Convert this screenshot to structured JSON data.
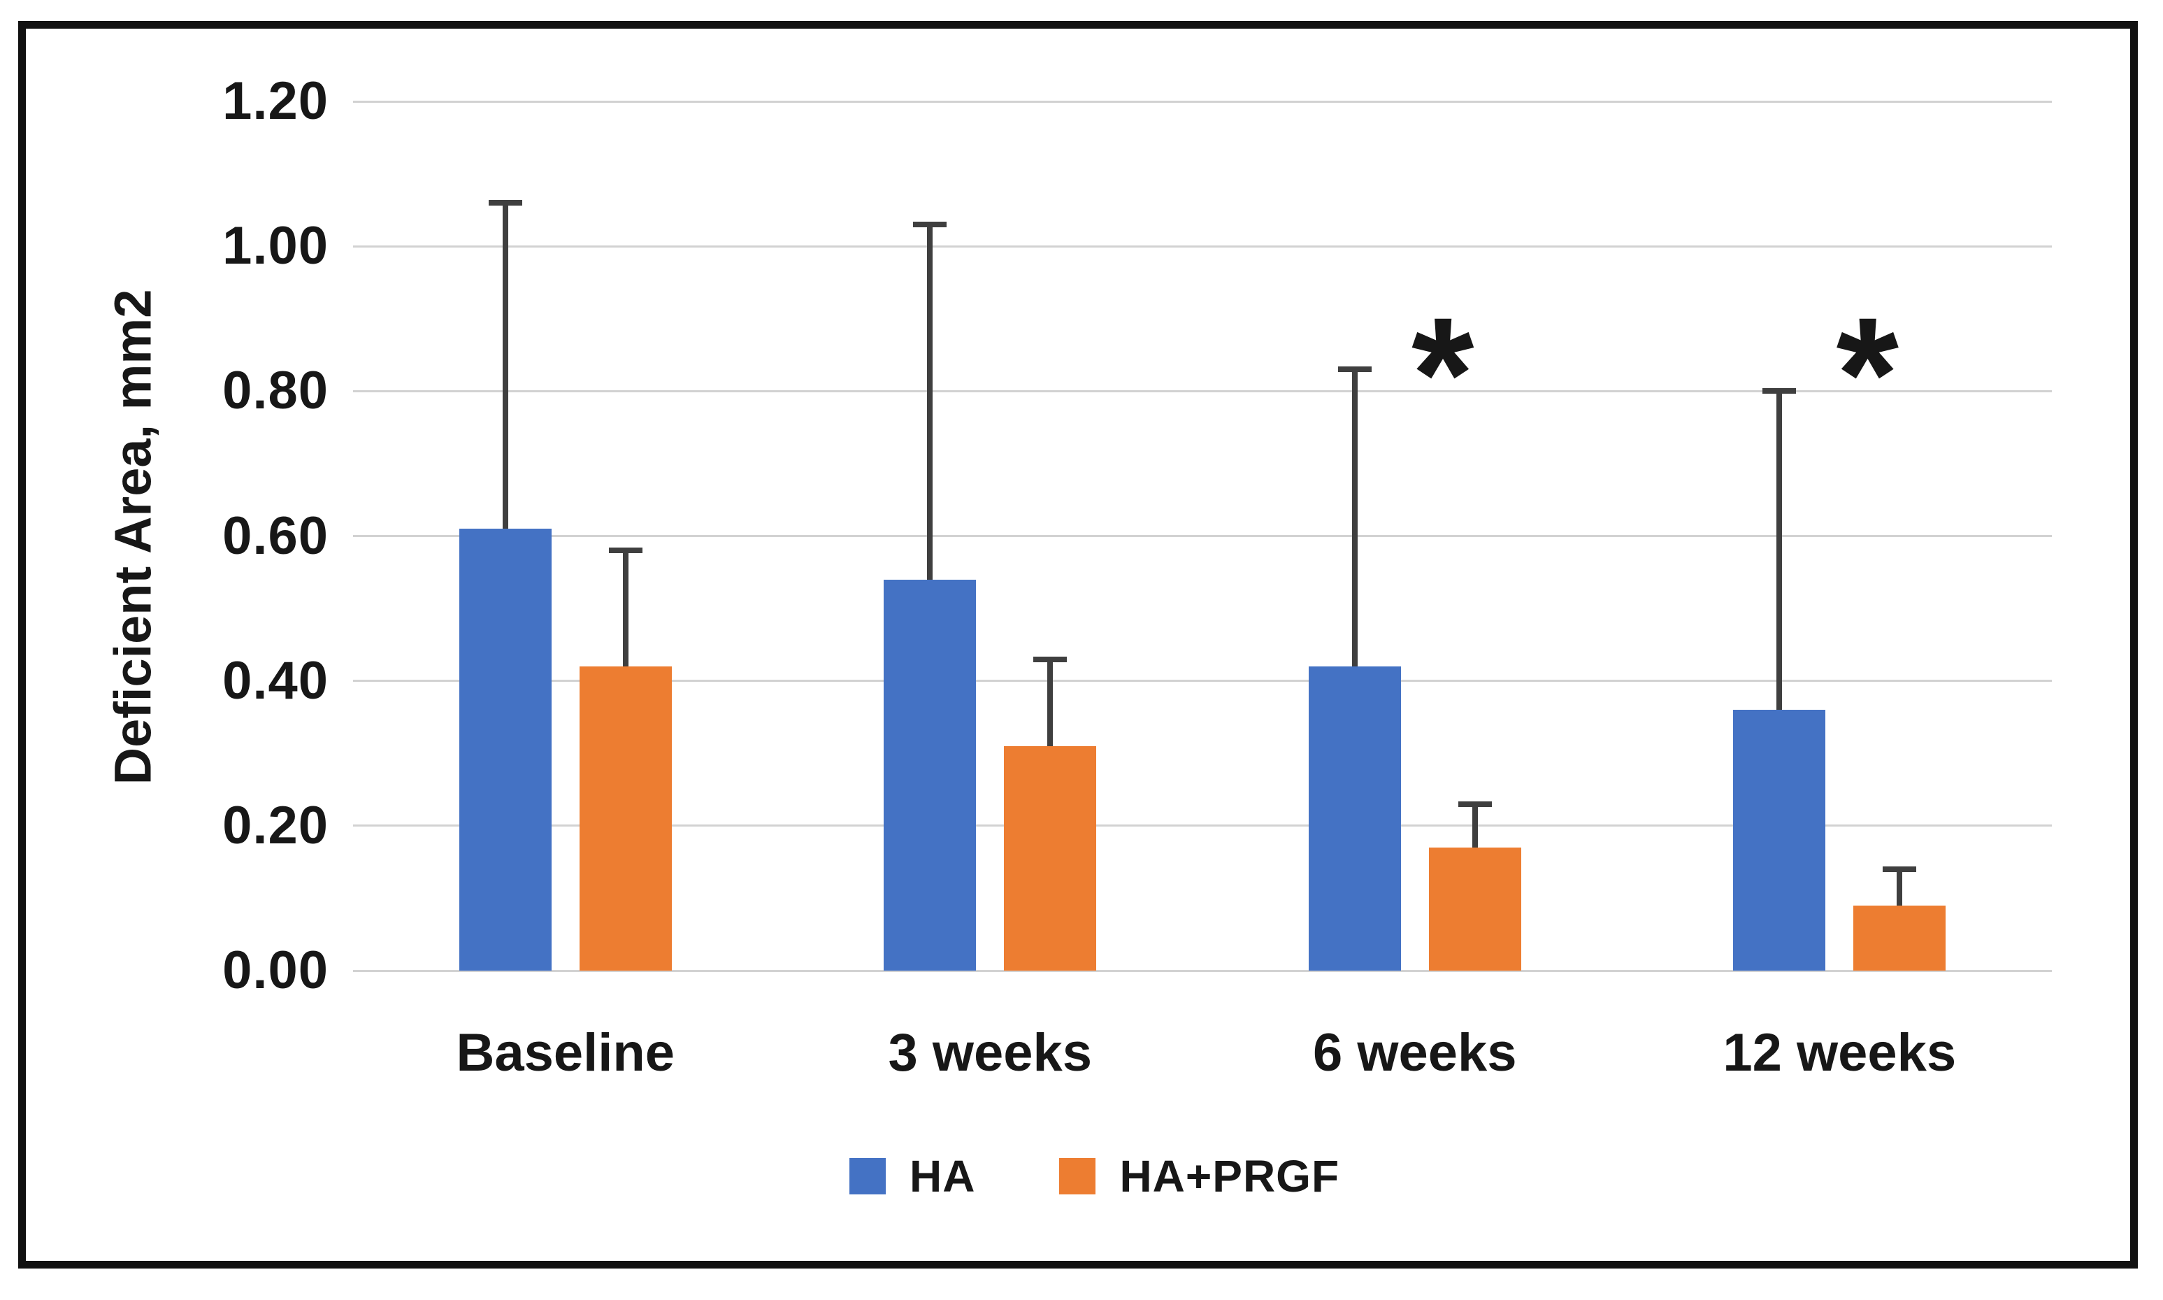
{
  "figure": {
    "background": "#ffffff",
    "border_color": "#111111"
  },
  "y_axis": {
    "title": "Deficient Area, mm2",
    "tick_labels": [
      "1.20",
      "1.00",
      "0.80",
      "0.60",
      "0.40",
      "0.20",
      "0.00"
    ],
    "min": 0,
    "max": 1.2,
    "step": 0.2
  },
  "x_axis": {
    "categories": [
      "Baseline",
      "3 weeks",
      "6 weeks",
      "12 weeks"
    ]
  },
  "legend": {
    "items": [
      {
        "label": "HA",
        "color": "#4472C4"
      },
      {
        "label": "HA+PRGF",
        "color": "#ED7D31"
      }
    ],
    "position": "bottom"
  },
  "colors": {
    "grid": "#d2d2d2",
    "error_bar": "#3f3f3f",
    "text": "#171717",
    "series_ha": "#4472C4",
    "series_ha_prgf": "#ED7D31"
  },
  "chart_data": {
    "type": "bar",
    "title": "",
    "xlabel": "",
    "ylabel": "Deficient Area, mm2",
    "ylim": [
      0,
      1.2
    ],
    "grid": true,
    "legend_position": "bottom",
    "categories": [
      "Baseline",
      "3 weeks",
      "6 weeks",
      "12 weeks"
    ],
    "series": [
      {
        "name": "HA",
        "color": "#4472C4",
        "values": [
          0.61,
          0.54,
          0.42,
          0.36
        ],
        "error_plus": [
          0.45,
          0.49,
          0.41,
          0.44
        ]
      },
      {
        "name": "HA+PRGF",
        "color": "#ED7D31",
        "values": [
          0.42,
          0.31,
          0.17,
          0.09
        ],
        "error_plus": [
          0.16,
          0.12,
          0.06,
          0.05
        ]
      }
    ],
    "annotations": [
      {
        "text": "*",
        "category": "6 weeks",
        "y": 0.88
      },
      {
        "text": "*",
        "category": "12 weeks",
        "y": 0.88
      }
    ]
  }
}
